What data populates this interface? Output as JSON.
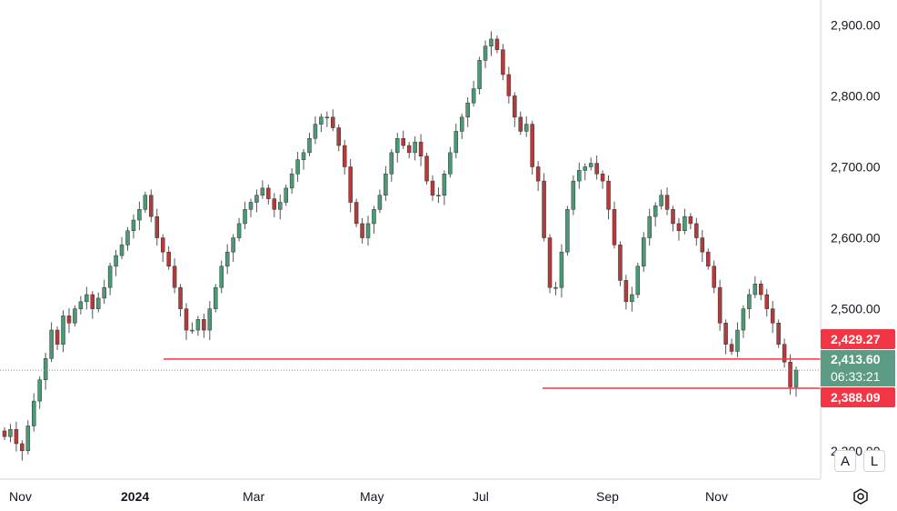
{
  "chart_data": {
    "type": "candlestick",
    "y_axis": {
      "ticks": [
        "2,300.00",
        "2,400.00",
        "2,500.00",
        "2,600.00",
        "2,700.00",
        "2,800.00",
        "2,900.00"
      ],
      "tick_values": [
        2300,
        2400,
        2500,
        2600,
        2700,
        2800,
        2900
      ],
      "ylim": [
        2260,
        2935
      ]
    },
    "x_axis": {
      "ticks": [
        {
          "label": "Nov",
          "bold": false
        },
        {
          "label": "2024",
          "bold": true
        },
        {
          "label": "Mar",
          "bold": false
        },
        {
          "label": "May",
          "bold": false
        },
        {
          "label": "Jul",
          "bold": false
        },
        {
          "label": "Sep",
          "bold": false
        },
        {
          "label": "Nov",
          "bold": false
        }
      ]
    },
    "candles_close_approx": [
      2320,
      2330,
      2310,
      2300,
      2335,
      2370,
      2400,
      2430,
      2470,
      2450,
      2490,
      2480,
      2500,
      2510,
      2520,
      2500,
      2515,
      2530,
      2560,
      2575,
      2590,
      2610,
      2625,
      2640,
      2660,
      2630,
      2600,
      2580,
      2560,
      2530,
      2500,
      2470,
      2470,
      2485,
      2470,
      2500,
      2530,
      2560,
      2580,
      2600,
      2620,
      2640,
      2650,
      2660,
      2670,
      2655,
      2640,
      2650,
      2670,
      2690,
      2710,
      2720,
      2740,
      2760,
      2770,
      2770,
      2755,
      2730,
      2700,
      2650,
      2620,
      2600,
      2620,
      2640,
      2660,
      2690,
      2720,
      2740,
      2730,
      2720,
      2735,
      2715,
      2680,
      2660,
      2660,
      2690,
      2720,
      2750,
      2770,
      2790,
      2810,
      2850,
      2870,
      2880,
      2865,
      2830,
      2800,
      2770,
      2750,
      2760,
      2700,
      2680,
      2600,
      2530,
      2530,
      2580,
      2640,
      2680,
      2695,
      2700,
      2705,
      2690,
      2680,
      2640,
      2590,
      2540,
      2510,
      2520,
      2560,
      2600,
      2630,
      2645,
      2660,
      2640,
      2620,
      2610,
      2630,
      2620,
      2600,
      2580,
      2560,
      2530,
      2480,
      2450,
      2440,
      2470,
      2500,
      2520,
      2535,
      2520,
      2500,
      2480,
      2450,
      2425,
      2390,
      2413.6
    ],
    "horizontal_lines": [
      {
        "value": 2429.27,
        "color": "#f23645"
      },
      {
        "value": 2388.09,
        "color": "#f23645"
      }
    ],
    "last_price": 2413.6,
    "price_tags": [
      {
        "text": "2,429.27",
        "color": "#f23645"
      },
      {
        "text": "2,413.60",
        "color": "#5d9c84"
      },
      {
        "text": "06:33:21",
        "color": "#5d9c84"
      },
      {
        "text": "2,388.09",
        "color": "#f23645"
      }
    ],
    "up_color": "#4a9a76",
    "down_color": "#b53a3a"
  },
  "controls": {
    "auto_label": "A",
    "log_label": "L",
    "settings_icon": "gear-hexagon-icon"
  }
}
